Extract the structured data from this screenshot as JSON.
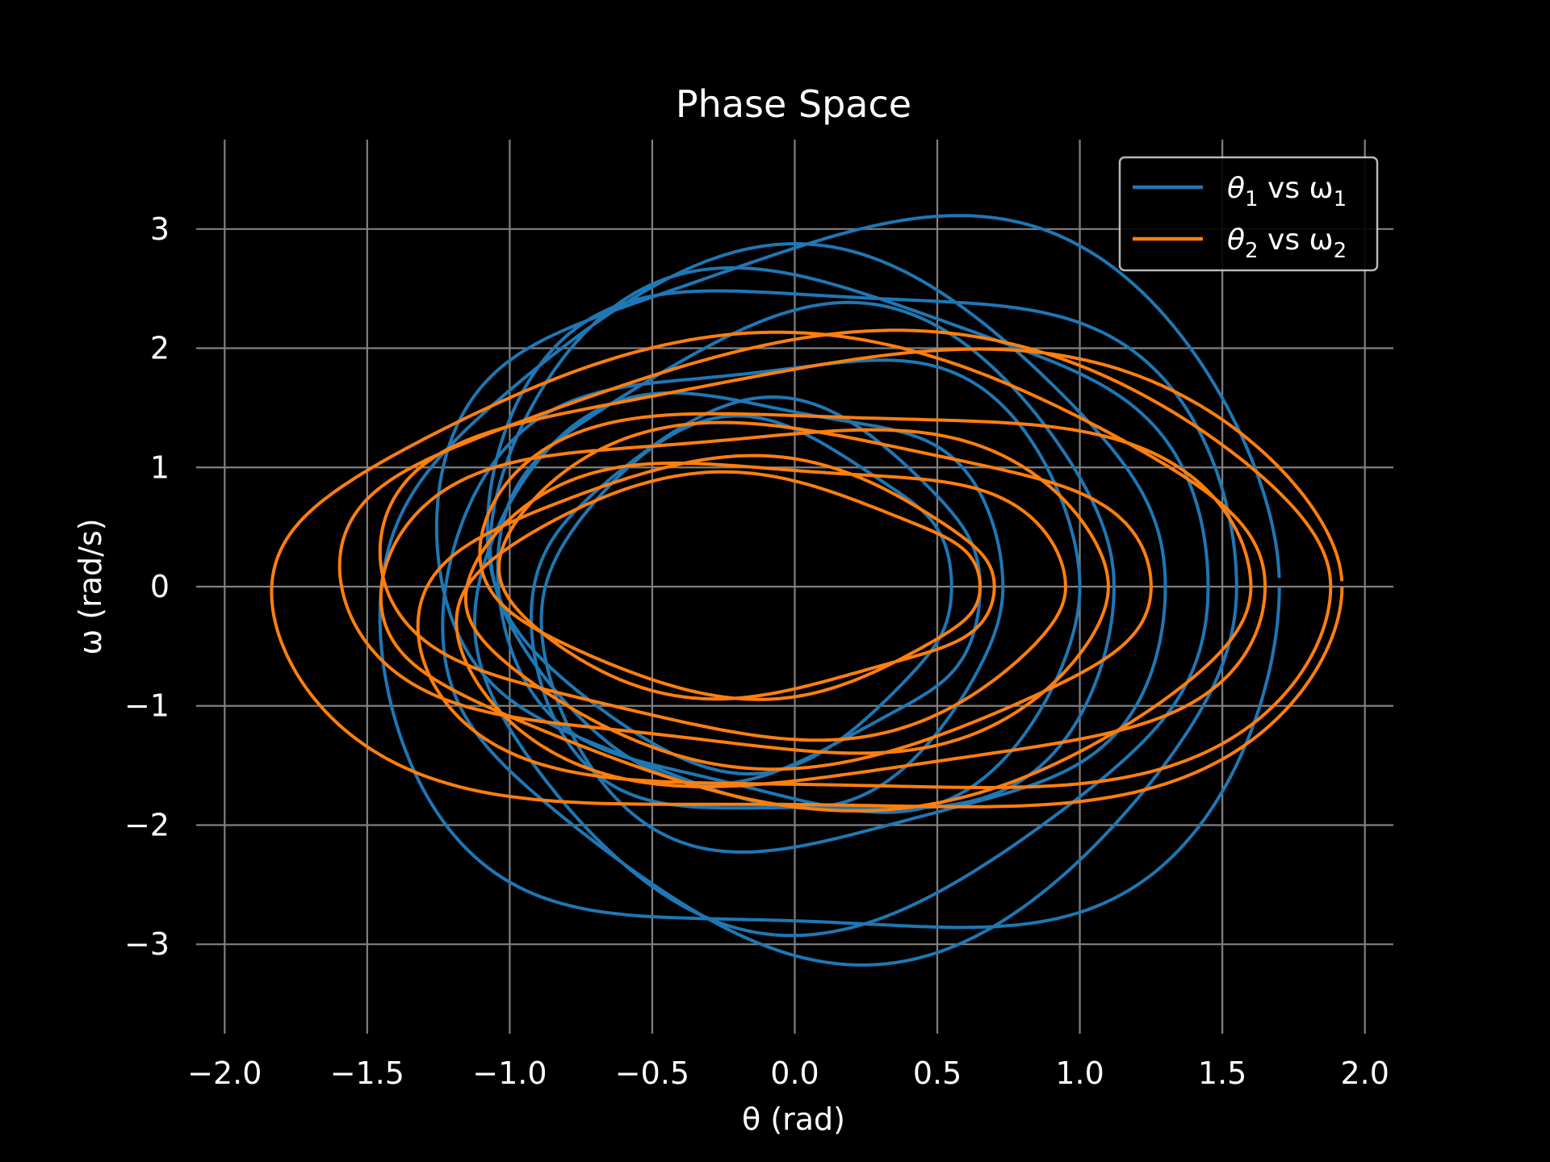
{
  "chart_data": {
    "type": "line",
    "title": "Phase Space",
    "xlabel": "θ (rad)",
    "ylabel": "ω (rad/s)",
    "xlim": [
      -2.1,
      2.1
    ],
    "ylim": [
      -3.75,
      3.75
    ],
    "xticks": [
      -2.0,
      -1.5,
      -1.0,
      -0.5,
      0.0,
      0.5,
      1.0,
      1.5,
      2.0
    ],
    "xtick_labels": [
      "−2.0",
      "−1.5",
      "−1.0",
      "−0.5",
      "0.0",
      "0.5",
      "1.0",
      "1.5",
      "2.0"
    ],
    "yticks": [
      -3,
      -2,
      -1,
      0,
      1,
      2,
      3
    ],
    "ytick_labels": [
      "−3",
      "−2",
      "−1",
      "0",
      "1",
      "2",
      "3"
    ],
    "grid": true,
    "legend_position": "top-right",
    "background": "#000000",
    "grid_color": "#808080",
    "series": [
      {
        "name": "θ1 vs ω1",
        "legend_main": "θ",
        "legend_sub1": "1",
        "legend_mid": " vs ω",
        "legend_sub2": "1",
        "color": "#1f77b4",
        "amplitudes": [
          1.7,
          1.25,
          0.55,
          1.55,
          0.95,
          1.15,
          0.65,
          1.45,
          0.75
        ],
        "centers": [
          0.0,
          0.05,
          0.0,
          0.0,
          0.05,
          -0.03,
          0.0,
          0.0,
          -0.02
        ],
        "omega": 1.95
      },
      {
        "name": "θ2 vs ω2",
        "legend_main": "θ",
        "legend_sub1": "2",
        "legend_mid": " vs ω",
        "legend_sub2": "2",
        "color": "#ff7f0e",
        "amplitudes": [
          1.92,
          1.7,
          0.6,
          1.6,
          1.2,
          1.88,
          0.7,
          1.3,
          0.95
        ],
        "centers": [
          0.0,
          -0.05,
          0.05,
          0.0,
          -0.1,
          0.0,
          0.0,
          -0.05,
          0.0
        ],
        "omega": 1.1
      }
    ]
  }
}
